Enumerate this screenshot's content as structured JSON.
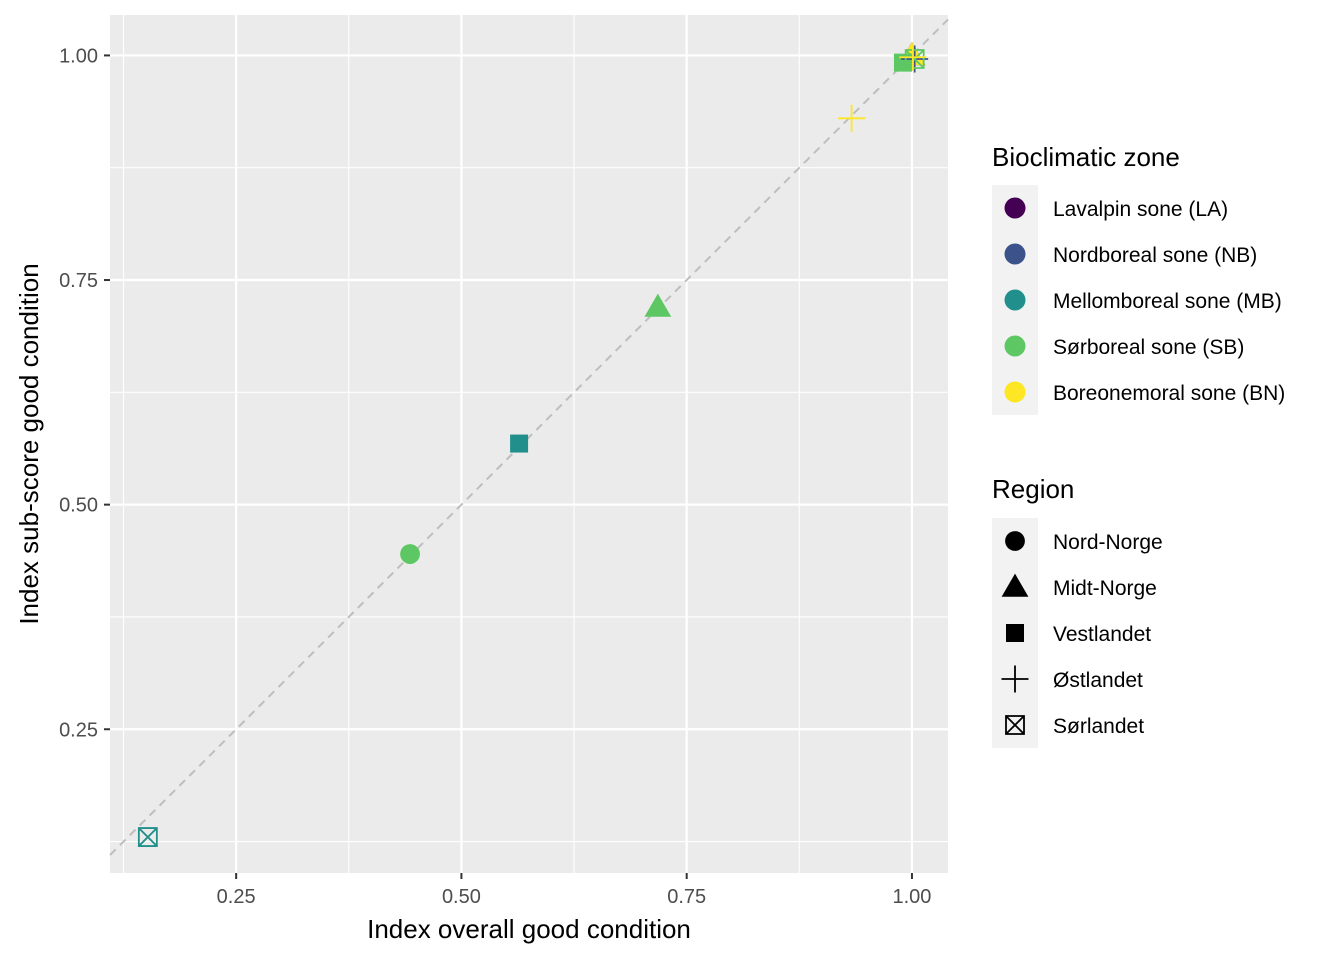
{
  "chart_data": {
    "type": "scatter",
    "title": "",
    "xlabel": "Index overall good condition",
    "ylabel": "Index sub-score good condition",
    "xlim": [
      0.11,
      1.04
    ],
    "ylim": [
      0.09,
      1.045
    ],
    "x_ticks": [
      {
        "value": 0.25,
        "label": "0.25"
      },
      {
        "value": 0.5,
        "label": "0.50"
      },
      {
        "value": 0.75,
        "label": "0.75"
      },
      {
        "value": 1.0,
        "label": "1.00"
      }
    ],
    "y_ticks": [
      {
        "value": 0.25,
        "label": "0.25"
      },
      {
        "value": 0.5,
        "label": "0.50"
      },
      {
        "value": 0.75,
        "label": "0.75"
      },
      {
        "value": 1.0,
        "label": "1.00"
      }
    ],
    "grid": true,
    "reference_line": {
      "type": "identity",
      "style": "dashed",
      "color": "#BEBEBE"
    },
    "legend_placement": "right",
    "color_legend": {
      "title": "Bioclimatic zone",
      "entries": [
        {
          "label": "Lavalpin sone (LA)",
          "color": "#440154"
        },
        {
          "label": "Nordboreal sone (NB)",
          "color": "#3B528B"
        },
        {
          "label": "Mellomboreal sone (MB)",
          "color": "#21908C"
        },
        {
          "label": "Sørboreal sone (SB)",
          "color": "#5DC863"
        },
        {
          "label": "Boreonemoral sone (BN)",
          "color": "#FDE725"
        }
      ]
    },
    "shape_legend": {
      "title": "Region",
      "entries": [
        {
          "label": "Nord-Norge",
          "shape": "circle"
        },
        {
          "label": "Midt-Norge",
          "shape": "triangle"
        },
        {
          "label": "Vestlandet",
          "shape": "square"
        },
        {
          "label": "Østlandet",
          "shape": "plus"
        },
        {
          "label": "Sørlandet",
          "shape": "square-x"
        }
      ]
    },
    "points": [
      {
        "x": 0.443,
        "y": 0.445,
        "zone": "Sørboreal sone (SB)",
        "region": "Nord-Norge"
      },
      {
        "x": 0.718,
        "y": 0.72,
        "zone": "Sørboreal sone (SB)",
        "region": "Midt-Norge"
      },
      {
        "x": 0.564,
        "y": 0.568,
        "zone": "Mellomboreal sone (MB)",
        "region": "Vestlandet"
      },
      {
        "x": 0.933,
        "y": 0.93,
        "zone": "Boreonemoral sone (BN)",
        "region": "Østlandet"
      },
      {
        "x": 0.152,
        "y": 0.13,
        "zone": "Mellomboreal sone (MB)",
        "region": "Sørlandet"
      },
      {
        "x": 1.0,
        "y": 1.0,
        "zone": "Lavalpin sone (LA)",
        "region": "Midt-Norge"
      },
      {
        "x": 1.0,
        "y": 1.0,
        "zone": "Nordboreal sone (NB)",
        "region": "Midt-Norge"
      },
      {
        "x": 1.0,
        "y": 1.0,
        "zone": "Boreonemoral sone (BN)",
        "region": "Midt-Norge"
      },
      {
        "x": 0.99,
        "y": 0.992,
        "zone": "Sørboreal sone (SB)",
        "region": "Vestlandet"
      },
      {
        "x": 1.003,
        "y": 0.996,
        "zone": "Nordboreal sone (NB)",
        "region": "Østlandet"
      },
      {
        "x": 1.003,
        "y": 0.996,
        "zone": "Sørboreal sone (SB)",
        "region": "Sørlandet"
      },
      {
        "x": 1.001,
        "y": 0.998,
        "zone": "Boreonemoral sone (BN)",
        "region": "Østlandet"
      }
    ]
  }
}
